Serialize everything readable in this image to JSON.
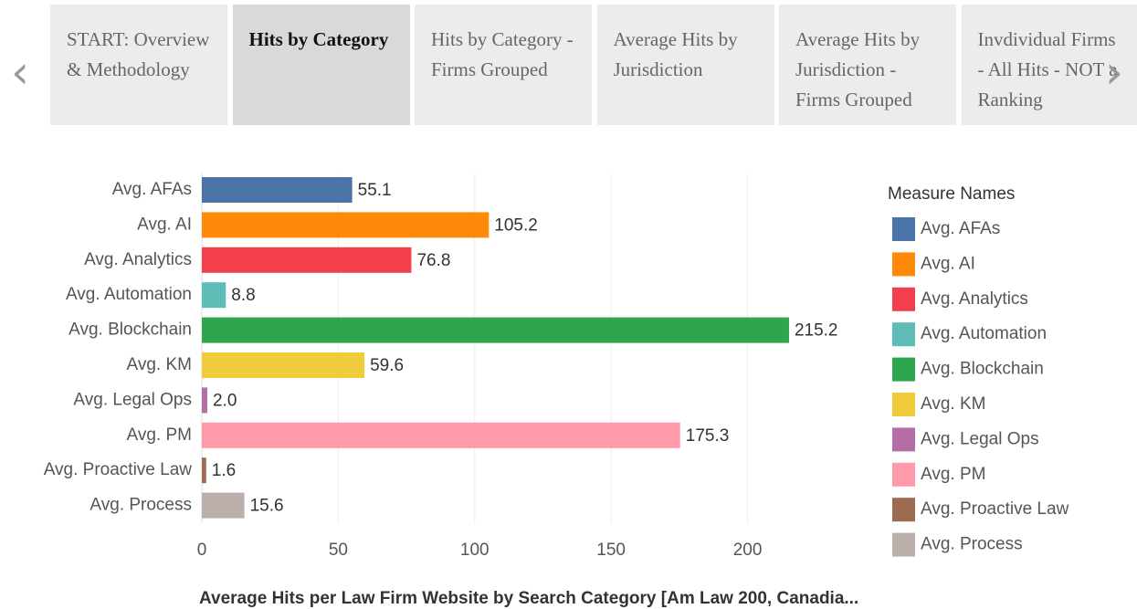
{
  "tabs": [
    "START: Overview & Methodology",
    "Hits by Category",
    "Hits by Category - Firms Grouped",
    "Average Hits by Jurisdiction",
    "Average Hits by Jurisdiction - Firms Grouped",
    "Invdividual Firms - All Hits - NOT a Ranking"
  ],
  "active_tab": 1,
  "chart_data": {
    "type": "hbar",
    "title": "Average Hits per Law Firm Website by Search Category [Am Law 200, Canadia...",
    "categories": [
      "Avg. AFAs",
      "Avg. AI",
      "Avg. Analytics",
      "Avg. Automation",
      "Avg. Blockchain",
      "Avg. KM",
      "Avg. Legal Ops",
      "Avg. PM",
      "Avg. Proactive Law",
      "Avg. Process"
    ],
    "values": [
      55.1,
      105.2,
      76.8,
      8.8,
      215.2,
      59.6,
      2.0,
      175.3,
      1.6,
      15.6
    ],
    "value_labels": [
      "55.1",
      "105.2",
      "76.8",
      "8.8",
      "215.2",
      "59.6",
      "2.0",
      "175.3",
      "1.6",
      "15.6"
    ],
    "colors": [
      "#4a74a8",
      "#ff8a0a",
      "#f33f4c",
      "#5dbdb6",
      "#2da64e",
      "#f1cc3a",
      "#b46ea6",
      "#ff9aab",
      "#9d6b4f",
      "#bbafab"
    ],
    "xlim": [
      0,
      245
    ],
    "xticks": [
      0,
      50,
      100,
      150,
      200
    ],
    "grid": true,
    "legend_title": "Measure Names",
    "legend": "right"
  }
}
